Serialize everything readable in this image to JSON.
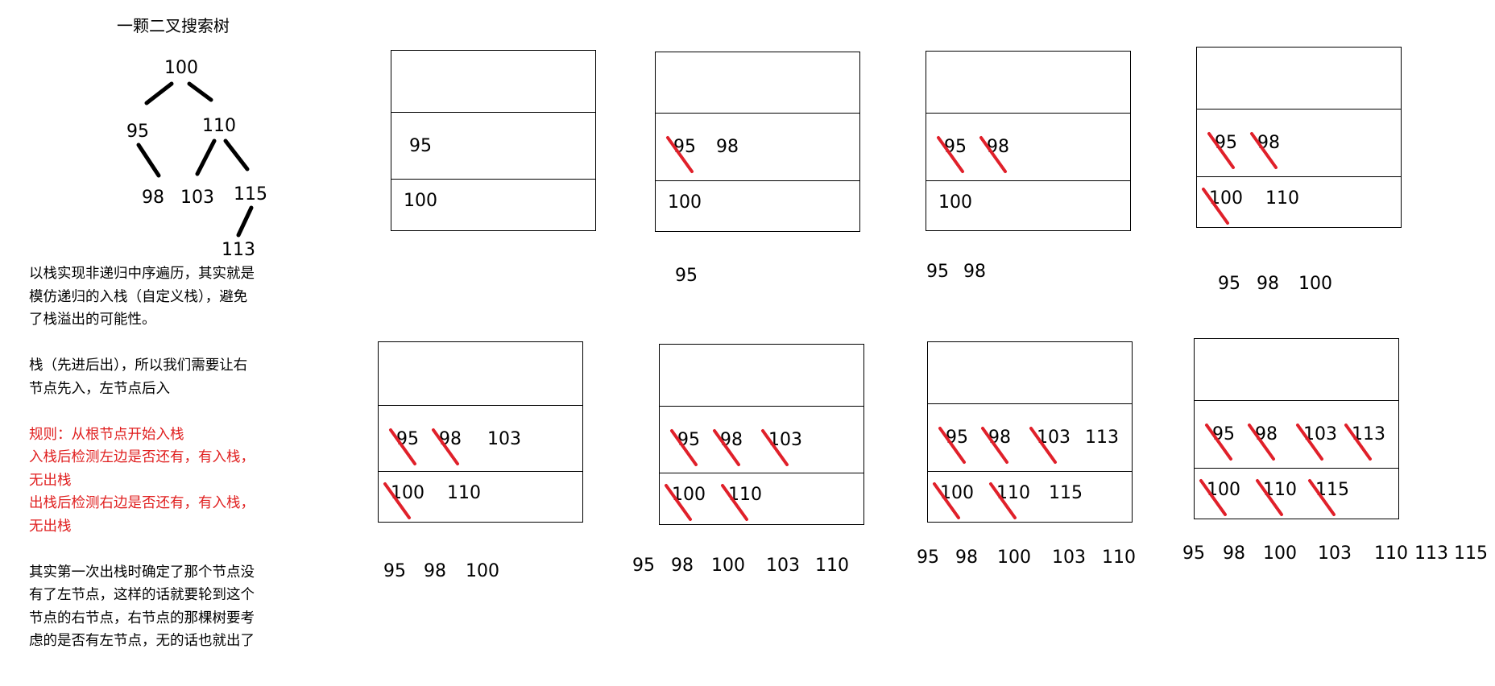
{
  "title": "一颗二叉搜索树",
  "tree": {
    "nodes": [
      "100",
      "95",
      "110",
      "98",
      "103",
      "115",
      "113"
    ]
  },
  "notes": {
    "para1": [
      "以栈实现非递归中序遍历，其实就是",
      "模仿递归的入栈（自定义栈），避免",
      "了栈溢出的可能性。"
    ],
    "para2": [
      "栈（先进后出），所以我们需要让右",
      "节点先入，左节点后入"
    ],
    "rules": [
      "规则：从根节点开始入栈",
      "入栈后检测左边是否还有，有入栈，",
      "无出栈",
      "出栈后检测右边是否还有，有入栈，",
      "无出栈"
    ],
    "para3": [
      "其实第一次出栈时确定了那个节点没",
      "有了左节点，这样的话就要轮到这个",
      "节点的右节点，右节点的那棵树要考",
      "虑的是否有左节点，无的话也就出了"
    ]
  },
  "stacks": [
    {
      "row1": [
        "95"
      ],
      "row2": [
        "100"
      ],
      "crossed": []
    },
    {
      "row1": [
        "95",
        "98"
      ],
      "row2": [
        "100"
      ],
      "crossed": [
        "95"
      ]
    },
    {
      "row1": [
        "95",
        "98"
      ],
      "row2": [
        "100"
      ],
      "crossed": [
        "95",
        "98"
      ]
    },
    {
      "row1": [
        "95",
        "98"
      ],
      "row2": [
        "100",
        "110"
      ],
      "crossed": [
        "95",
        "98",
        "100"
      ]
    },
    {
      "row1": [
        "95",
        "98",
        "103"
      ],
      "row2": [
        "100",
        "110"
      ],
      "crossed": [
        "95",
        "98",
        "100"
      ]
    },
    {
      "row1": [
        "95",
        "98",
        "103"
      ],
      "row2": [
        "100",
        "110"
      ],
      "crossed": [
        "95",
        "98",
        "103",
        "100",
        "110"
      ]
    },
    {
      "row1": [
        "95",
        "98",
        "103",
        "113"
      ],
      "row2": [
        "100",
        "110",
        "115"
      ],
      "crossed": [
        "95",
        "98",
        "103",
        "100",
        "110"
      ]
    },
    {
      "row1": [
        "95",
        "98",
        "103",
        "113"
      ],
      "row2": [
        "100",
        "110",
        "115"
      ],
      "crossed": [
        "95",
        "98",
        "103",
        "113",
        "100",
        "110",
        "115"
      ]
    }
  ],
  "outputs": [
    [],
    [
      "95"
    ],
    [
      "95",
      "98"
    ],
    [
      "95",
      "98",
      "100"
    ],
    [
      "95",
      "98",
      "100"
    ],
    [
      "95",
      "98",
      "100",
      "103",
      "110"
    ],
    [
      "95",
      "98",
      "100",
      "103",
      "110"
    ],
    [
      "95",
      "98",
      "100",
      "103",
      "110",
      "113",
      "115"
    ]
  ],
  "colors": {
    "strike": "#e0202a",
    "rule_text": "#e02020"
  }
}
